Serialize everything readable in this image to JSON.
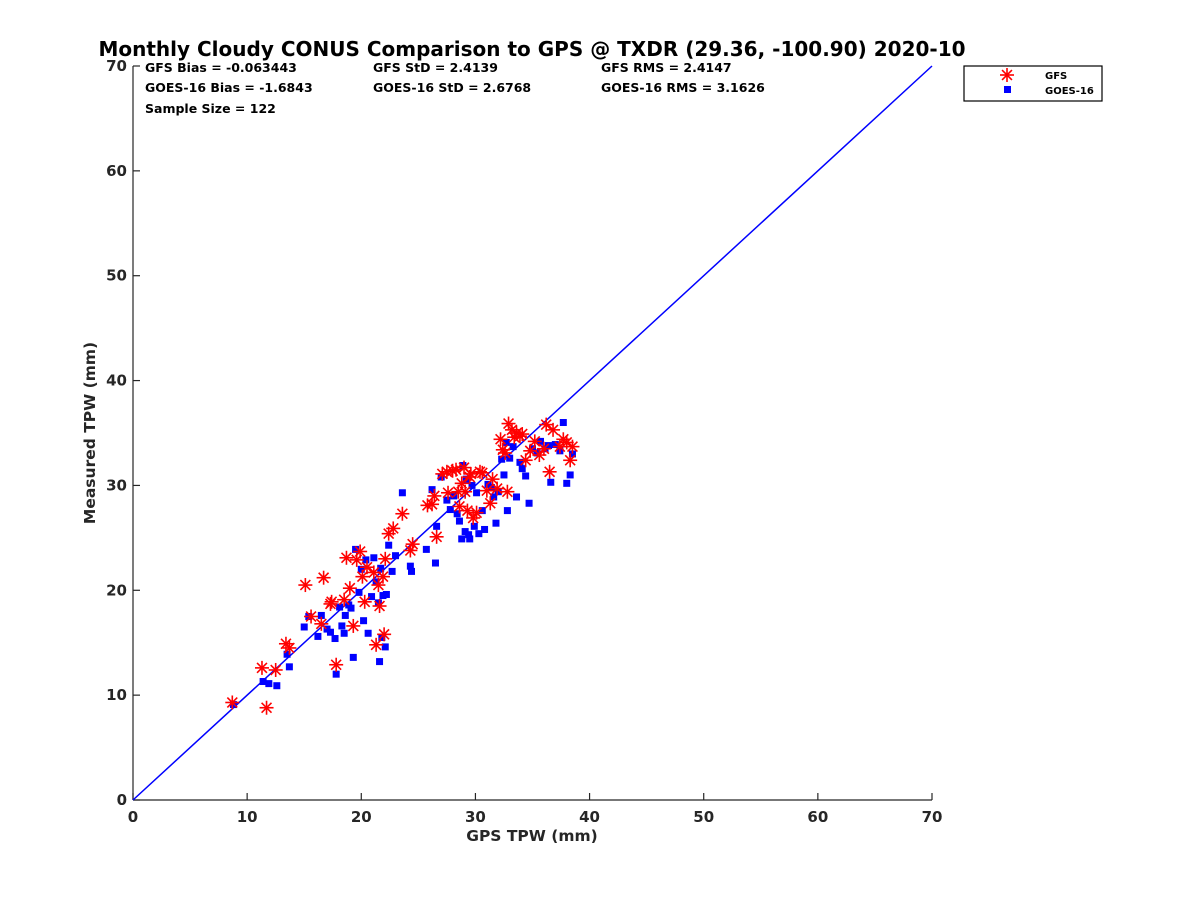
{
  "chart_data": {
    "type": "scatter",
    "title": "Monthly Cloudy CONUS Comparison to GPS @ TXDR (29.36, -100.90) 2020-10",
    "xlabel": "GPS TPW (mm)",
    "ylabel": "Measured TPW (mm)",
    "xlim": [
      0,
      70
    ],
    "ylim": [
      0,
      70
    ],
    "xticks": [
      "0",
      "10",
      "20",
      "30",
      "40",
      "50",
      "60",
      "70"
    ],
    "yticks": [
      "0",
      "10",
      "20",
      "30",
      "40",
      "50",
      "60",
      "70"
    ],
    "grid": false,
    "legend_position": "top-right (outside)",
    "stats": {
      "gfs_bias": "GFS Bias = -0.063443",
      "goes_bias": "GOES-16 Bias = -1.6843",
      "sample_size": "Sample Size = 122",
      "gfs_std": "GFS StD = 2.4139",
      "goes_std": "GOES-16 StD = 2.6768",
      "gfs_rms": "GFS RMS = 2.4147",
      "goes_rms": "GOES-16 RMS = 3.1626"
    },
    "reference_line": {
      "x": [
        0,
        70
      ],
      "y": [
        0,
        70
      ],
      "color": "#0000ff"
    },
    "series": [
      {
        "name": "GFS",
        "marker": "asterisk",
        "color": "#ff0000",
        "points": [
          [
            8.7,
            9.3
          ],
          [
            11.3,
            12.6
          ],
          [
            11.7,
            8.8
          ],
          [
            12.5,
            12.4
          ],
          [
            13.4,
            14.9
          ],
          [
            13.7,
            14.5
          ],
          [
            15.1,
            20.5
          ],
          [
            15.6,
            17.5
          ],
          [
            16.5,
            16.8
          ],
          [
            16.7,
            21.2
          ],
          [
            17.3,
            18.7
          ],
          [
            17.8,
            12.9
          ],
          [
            17.4,
            18.9
          ],
          [
            18.5,
            19.1
          ],
          [
            18.7,
            23.1
          ],
          [
            19.0,
            20.2
          ],
          [
            19.3,
            16.6
          ],
          [
            19.6,
            22.9
          ],
          [
            19.9,
            23.7
          ],
          [
            20.1,
            21.3
          ],
          [
            20.3,
            18.9
          ],
          [
            20.5,
            22.2
          ],
          [
            21.1,
            21.7
          ],
          [
            21.3,
            14.8
          ],
          [
            21.5,
            20.5
          ],
          [
            21.6,
            18.5
          ],
          [
            21.9,
            21.3
          ],
          [
            22.0,
            15.8
          ],
          [
            22.1,
            23.0
          ],
          [
            22.4,
            25.4
          ],
          [
            22.8,
            25.9
          ],
          [
            23.6,
            27.3
          ],
          [
            24.3,
            23.8
          ],
          [
            24.5,
            24.4
          ],
          [
            25.8,
            28.1
          ],
          [
            26.2,
            28.2
          ],
          [
            26.4,
            29.0
          ],
          [
            26.6,
            25.1
          ],
          [
            27.1,
            31.1
          ],
          [
            27.5,
            31.3
          ],
          [
            27.6,
            29.3
          ],
          [
            28.0,
            31.4
          ],
          [
            28.3,
            31.5
          ],
          [
            28.5,
            29.4
          ],
          [
            28.6,
            28.0
          ],
          [
            28.8,
            30.2
          ],
          [
            29.0,
            31.7
          ],
          [
            29.1,
            29.4
          ],
          [
            29.3,
            27.6
          ],
          [
            29.5,
            30.8
          ],
          [
            29.6,
            31.1
          ],
          [
            29.8,
            26.9
          ],
          [
            30.1,
            27.4
          ],
          [
            30.4,
            31.3
          ],
          [
            30.6,
            31.2
          ],
          [
            31.0,
            29.5
          ],
          [
            31.3,
            28.3
          ],
          [
            31.5,
            30.6
          ],
          [
            31.9,
            29.7
          ],
          [
            32.2,
            34.4
          ],
          [
            32.4,
            33.4
          ],
          [
            32.6,
            33.1
          ],
          [
            32.8,
            29.4
          ],
          [
            32.9,
            35.9
          ],
          [
            33.2,
            35.3
          ],
          [
            33.4,
            34.6
          ],
          [
            33.6,
            35.0
          ],
          [
            33.9,
            34.7
          ],
          [
            34.1,
            34.9
          ],
          [
            34.4,
            32.4
          ],
          [
            34.8,
            33.3
          ],
          [
            35.2,
            34.2
          ],
          [
            35.6,
            32.9
          ],
          [
            36.0,
            33.5
          ],
          [
            36.2,
            35.8
          ],
          [
            36.5,
            31.3
          ],
          [
            36.8,
            35.3
          ],
          [
            37.4,
            33.7
          ],
          [
            37.7,
            34.4
          ],
          [
            38.0,
            34.1
          ],
          [
            38.3,
            32.4
          ],
          [
            38.5,
            33.7
          ]
        ]
      },
      {
        "name": "GOES-16",
        "marker": "square",
        "color": "#0000ff",
        "points": [
          [
            8.8,
            9.1
          ],
          [
            11.4,
            11.3
          ],
          [
            11.9,
            11.1
          ],
          [
            12.6,
            10.9
          ],
          [
            13.5,
            13.9
          ],
          [
            13.7,
            12.7
          ],
          [
            15.0,
            16.5
          ],
          [
            15.4,
            17.5
          ],
          [
            16.2,
            15.6
          ],
          [
            16.5,
            17.6
          ],
          [
            17.0,
            16.3
          ],
          [
            17.3,
            16.0
          ],
          [
            17.7,
            15.4
          ],
          [
            17.8,
            12.0
          ],
          [
            18.1,
            18.4
          ],
          [
            18.3,
            16.6
          ],
          [
            18.5,
            15.9
          ],
          [
            18.6,
            17.6
          ],
          [
            18.9,
            18.6
          ],
          [
            19.1,
            18.3
          ],
          [
            19.3,
            13.6
          ],
          [
            19.5,
            23.9
          ],
          [
            19.8,
            19.8
          ],
          [
            20.0,
            22.0
          ],
          [
            20.2,
            17.1
          ],
          [
            20.4,
            22.9
          ],
          [
            20.6,
            15.9
          ],
          [
            20.9,
            19.4
          ],
          [
            21.1,
            23.1
          ],
          [
            21.3,
            20.8
          ],
          [
            21.5,
            18.8
          ],
          [
            21.6,
            13.2
          ],
          [
            21.7,
            22.1
          ],
          [
            21.8,
            15.5
          ],
          [
            21.9,
            19.5
          ],
          [
            22.1,
            14.6
          ],
          [
            22.2,
            19.6
          ],
          [
            22.4,
            24.3
          ],
          [
            22.7,
            21.8
          ],
          [
            23.0,
            23.3
          ],
          [
            23.6,
            29.3
          ],
          [
            24.3,
            22.3
          ],
          [
            24.4,
            21.8
          ],
          [
            25.7,
            23.9
          ],
          [
            26.2,
            29.6
          ],
          [
            26.5,
            22.6
          ],
          [
            26.6,
            26.1
          ],
          [
            27.0,
            30.8
          ],
          [
            27.5,
            28.6
          ],
          [
            27.8,
            27.7
          ],
          [
            28.1,
            29.0
          ],
          [
            28.4,
            27.3
          ],
          [
            28.6,
            26.6
          ],
          [
            28.8,
            24.9
          ],
          [
            28.9,
            31.9
          ],
          [
            29.1,
            25.6
          ],
          [
            29.2,
            30.6
          ],
          [
            29.4,
            25.3
          ],
          [
            29.5,
            24.9
          ],
          [
            29.7,
            30.0
          ],
          [
            29.9,
            26.1
          ],
          [
            30.1,
            29.3
          ],
          [
            30.3,
            25.4
          ],
          [
            30.6,
            27.6
          ],
          [
            30.8,
            25.8
          ],
          [
            31.1,
            30.1
          ],
          [
            31.4,
            29.8
          ],
          [
            31.6,
            28.9
          ],
          [
            31.8,
            26.4
          ],
          [
            32.0,
            29.4
          ],
          [
            32.3,
            32.5
          ],
          [
            32.5,
            31.0
          ],
          [
            32.7,
            34.1
          ],
          [
            32.8,
            27.6
          ],
          [
            33.0,
            32.6
          ],
          [
            33.3,
            33.7
          ],
          [
            33.6,
            28.9
          ],
          [
            33.9,
            32.2
          ],
          [
            34.1,
            31.6
          ],
          [
            34.4,
            30.9
          ],
          [
            34.7,
            28.3
          ],
          [
            35.0,
            33.5
          ],
          [
            35.4,
            33.1
          ],
          [
            35.7,
            34.2
          ],
          [
            36.1,
            33.5
          ],
          [
            36.4,
            33.8
          ],
          [
            36.6,
            30.3
          ],
          [
            37.0,
            33.9
          ],
          [
            37.4,
            33.3
          ],
          [
            37.7,
            36.0
          ],
          [
            38.0,
            30.2
          ],
          [
            38.3,
            31.0
          ],
          [
            38.5,
            33.0
          ]
        ]
      }
    ]
  }
}
